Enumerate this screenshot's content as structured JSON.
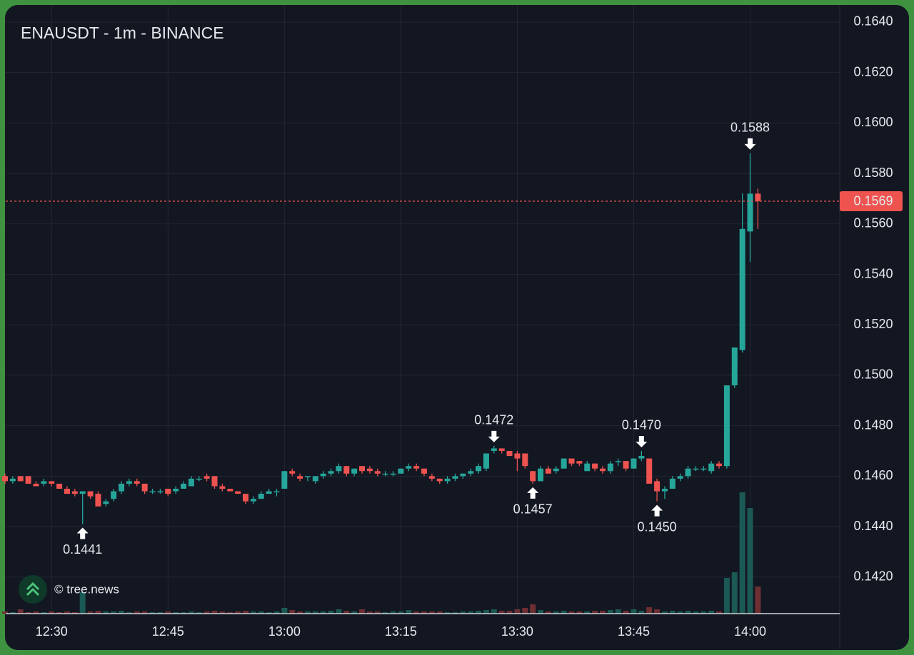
{
  "chart_data": {
    "type": "candlestick",
    "title": "ENAUSDT - 1m - BINANCE",
    "watermark": "© tree.news",
    "x": [
      "12:24",
      "12:25",
      "12:26",
      "12:27",
      "12:28",
      "12:29",
      "12:30",
      "12:31",
      "12:32",
      "12:33",
      "12:34",
      "12:35",
      "12:36",
      "12:37",
      "12:38",
      "12:39",
      "12:40",
      "12:41",
      "12:42",
      "12:43",
      "12:44",
      "12:45",
      "12:46",
      "12:47",
      "12:48",
      "12:49",
      "12:50",
      "12:51",
      "12:52",
      "12:53",
      "12:54",
      "12:55",
      "12:56",
      "12:57",
      "12:58",
      "12:59",
      "13:00",
      "13:01",
      "13:02",
      "13:03",
      "13:04",
      "13:05",
      "13:06",
      "13:07",
      "13:08",
      "13:09",
      "13:10",
      "13:11",
      "13:12",
      "13:13",
      "13:14",
      "13:15",
      "13:16",
      "13:17",
      "13:18",
      "13:19",
      "13:20",
      "13:21",
      "13:22",
      "13:23",
      "13:24",
      "13:25",
      "13:26",
      "13:27",
      "13:28",
      "13:29",
      "13:30",
      "13:31",
      "13:32",
      "13:33",
      "13:34",
      "13:35",
      "13:36",
      "13:37",
      "13:38",
      "13:39",
      "13:40",
      "13:41",
      "13:42",
      "13:43",
      "13:44",
      "13:45",
      "13:46",
      "13:47",
      "13:48",
      "13:49",
      "13:50",
      "13:51",
      "13:52",
      "13:53",
      "13:54",
      "13:55",
      "13:56",
      "13:57",
      "13:58",
      "13:59",
      "14:00",
      "14:01"
    ],
    "open": [
      0.146,
      0.1458,
      0.146,
      0.146,
      0.1457,
      0.1457,
      0.1458,
      0.1457,
      0.1455,
      0.1454,
      0.1453,
      0.1454,
      0.1453,
      0.1449,
      0.1451,
      0.1454,
      0.1457,
      0.1458,
      0.1457,
      0.1454,
      0.1454,
      0.1455,
      0.1454,
      0.1455,
      0.1456,
      0.1459,
      0.146,
      0.146,
      0.1456,
      0.1455,
      0.1454,
      0.1453,
      0.145,
      0.1451,
      0.1453,
      0.1454,
      0.1455,
      0.1462,
      0.146,
      0.146,
      0.1458,
      0.146,
      0.1461,
      0.1462,
      0.1464,
      0.1461,
      0.1464,
      0.1463,
      0.1462,
      0.1461,
      0.1461,
      0.1461,
      0.1463,
      0.1464,
      0.1463,
      0.146,
      0.1459,
      0.1458,
      0.1459,
      0.146,
      0.1461,
      0.1462,
      0.1463,
      0.147,
      0.1471,
      0.147,
      0.1469,
      0.1469,
      0.1462,
      0.1458,
      0.1463,
      0.1462,
      0.1463,
      0.1467,
      0.1466,
      0.1462,
      0.1465,
      0.1463,
      0.1462,
      0.1466,
      0.1466,
      0.1463,
      0.1467,
      0.1467,
      0.1458,
      0.1454,
      0.1455,
      0.1459,
      0.146,
      0.1463,
      0.1463,
      0.1462,
      0.1465,
      0.1464,
      0.1496,
      0.151,
      0.1557,
      0.1572
    ],
    "high": [
      0.1461,
      0.146,
      0.146,
      0.146,
      0.1458,
      0.1459,
      0.1458,
      0.1457,
      0.1456,
      0.1455,
      0.1454,
      0.1454,
      0.1454,
      0.1451,
      0.1455,
      0.1458,
      0.1459,
      0.1459,
      0.1457,
      0.1455,
      0.1455,
      0.1455,
      0.1456,
      0.1458,
      0.146,
      0.146,
      0.1461,
      0.146,
      0.1457,
      0.1455,
      0.1454,
      0.1453,
      0.1452,
      0.1454,
      0.1455,
      0.1455,
      0.1462,
      0.1463,
      0.1461,
      0.146,
      0.146,
      0.1462,
      0.1463,
      0.1465,
      0.1464,
      0.1463,
      0.1464,
      0.1464,
      0.1463,
      0.1462,
      0.1462,
      0.1463,
      0.1465,
      0.1465,
      0.1463,
      0.1461,
      0.1459,
      0.146,
      0.1461,
      0.1461,
      0.1463,
      0.1465,
      0.1469,
      0.1472,
      0.1471,
      0.147,
      0.147,
      0.1469,
      0.1462,
      0.1464,
      0.1464,
      0.1464,
      0.1467,
      0.1467,
      0.1466,
      0.1466,
      0.1465,
      0.1464,
      0.1466,
      0.1467,
      0.1466,
      0.1467,
      0.147,
      0.1467,
      0.1459,
      0.1456,
      0.146,
      0.1461,
      0.1464,
      0.1464,
      0.1464,
      0.1466,
      0.1466,
      0.1496,
      0.1511,
      0.1572,
      0.1588,
      0.1574
    ],
    "low": [
      0.1457,
      0.1457,
      0.1458,
      0.1457,
      0.1456,
      0.1456,
      0.1456,
      0.1455,
      0.1453,
      0.1452,
      0.1441,
      0.1451,
      0.1448,
      0.1448,
      0.145,
      0.1453,
      0.1456,
      0.1456,
      0.1453,
      0.1453,
      0.1453,
      0.1452,
      0.1453,
      0.1455,
      0.1456,
      0.1458,
      0.1458,
      0.1455,
      0.1454,
      0.1454,
      0.1453,
      0.1449,
      0.1449,
      0.1451,
      0.1453,
      0.1452,
      0.1455,
      0.146,
      0.1458,
      0.1458,
      0.1457,
      0.1459,
      0.146,
      0.1461,
      0.146,
      0.146,
      0.1461,
      0.1461,
      0.146,
      0.146,
      0.146,
      0.1461,
      0.1462,
      0.1462,
      0.146,
      0.1458,
      0.1457,
      0.1457,
      0.1458,
      0.1459,
      0.146,
      0.1461,
      0.1462,
      0.1469,
      0.1469,
      0.1468,
      0.1462,
      0.1463,
      0.1457,
      0.1458,
      0.1461,
      0.1461,
      0.1463,
      0.1464,
      0.1464,
      0.1462,
      0.1462,
      0.1461,
      0.1461,
      0.1464,
      0.1462,
      0.1463,
      0.1466,
      0.1457,
      0.145,
      0.1451,
      0.1455,
      0.1458,
      0.1459,
      0.1462,
      0.1462,
      0.1461,
      0.1463,
      0.1463,
      0.1495,
      0.1509,
      0.1545,
      0.1558
    ],
    "close": [
      0.1458,
      0.1459,
      0.1458,
      0.1457,
      0.1456,
      0.1458,
      0.1457,
      0.1455,
      0.1453,
      0.1453,
      0.1454,
      0.1452,
      0.1448,
      0.145,
      0.1454,
      0.1457,
      0.1458,
      0.1457,
      0.1454,
      0.1454,
      0.1454,
      0.1453,
      0.1455,
      0.1457,
      0.1459,
      0.1459,
      0.1459,
      0.1456,
      0.1455,
      0.1454,
      0.1453,
      0.145,
      0.1451,
      0.1453,
      0.1454,
      0.1454,
      0.1462,
      0.1461,
      0.1459,
      0.146,
      0.146,
      0.1461,
      0.1462,
      0.1464,
      0.1461,
      0.1463,
      0.1462,
      0.1462,
      0.1461,
      0.1461,
      0.1461,
      0.1463,
      0.1464,
      0.1463,
      0.1461,
      0.1459,
      0.1458,
      0.1459,
      0.146,
      0.1461,
      0.1462,
      0.1464,
      0.1469,
      0.1471,
      0.147,
      0.1468,
      0.1467,
      0.1464,
      0.1458,
      0.1463,
      0.1461,
      0.1463,
      0.1467,
      0.1465,
      0.1465,
      0.1465,
      0.1463,
      0.1462,
      0.1465,
      0.1466,
      0.1463,
      0.1467,
      0.1468,
      0.1457,
      0.1454,
      0.1455,
      0.1459,
      0.146,
      0.1463,
      0.1463,
      0.1463,
      0.1465,
      0.1464,
      0.1496,
      0.1511,
      0.1558,
      0.1572,
      0.1569
    ],
    "volume": [
      3,
      2,
      6,
      2,
      3,
      2,
      3,
      2,
      3,
      2,
      30,
      3,
      4,
      3,
      3,
      4,
      2,
      3,
      3,
      2,
      2,
      3,
      2,
      2,
      3,
      2,
      3,
      4,
      3,
      2,
      3,
      4,
      3,
      3,
      2,
      3,
      8,
      5,
      3,
      3,
      3,
      3,
      4,
      6,
      4,
      3,
      6,
      3,
      3,
      2,
      3,
      3,
      5,
      3,
      3,
      3,
      3,
      2,
      2,
      3,
      3,
      4,
      5,
      6,
      4,
      4,
      6,
      8,
      13,
      5,
      3,
      3,
      4,
      3,
      3,
      3,
      4,
      4,
      5,
      6,
      4,
      6,
      4,
      9,
      6,
      3,
      4,
      3,
      4,
      3,
      3,
      4,
      3,
      50,
      58,
      170,
      148,
      38
    ],
    "up_color": "#26a69a",
    "down_color": "#ef5350",
    "up_volume_color": "#1b5954",
    "down_volume_color": "#6e2f33",
    "ylim": [
      0.14055,
      0.16465
    ],
    "yticks": [
      {
        "value": 0.142,
        "label": "0.1420"
      },
      {
        "value": 0.144,
        "label": "0.1440"
      },
      {
        "value": 0.146,
        "label": "0.1460"
      },
      {
        "value": 0.148,
        "label": "0.1480"
      },
      {
        "value": 0.15,
        "label": "0.1500"
      },
      {
        "value": 0.152,
        "label": "0.1520"
      },
      {
        "value": 0.154,
        "label": "0.1540"
      },
      {
        "value": 0.156,
        "label": "0.1560"
      },
      {
        "value": 0.158,
        "label": "0.1580"
      },
      {
        "value": 0.16,
        "label": "0.1600"
      },
      {
        "value": 0.162,
        "label": "0.1620"
      },
      {
        "value": 0.164,
        "label": "0.1640"
      }
    ],
    "xticks": [
      "12:30",
      "12:45",
      "13:00",
      "13:15",
      "13:30",
      "13:45",
      "14:00"
    ],
    "grid": true,
    "last_price": 0.1569,
    "markers": [
      {
        "x": "12:34",
        "value": 0.1441,
        "label": "0.1441"
      },
      {
        "x": "13:27",
        "value": 0.1472,
        "label": "0.1472"
      },
      {
        "x": "13:32",
        "value": 0.1457,
        "label": "0.1457"
      },
      {
        "x": "13:46",
        "value": 0.147,
        "label": "0.1470"
      },
      {
        "x": "13:48",
        "value": 0.145,
        "label": "0.1450"
      },
      {
        "x": "14:00",
        "value": 0.1588,
        "label": "0.1588"
      }
    ]
  }
}
